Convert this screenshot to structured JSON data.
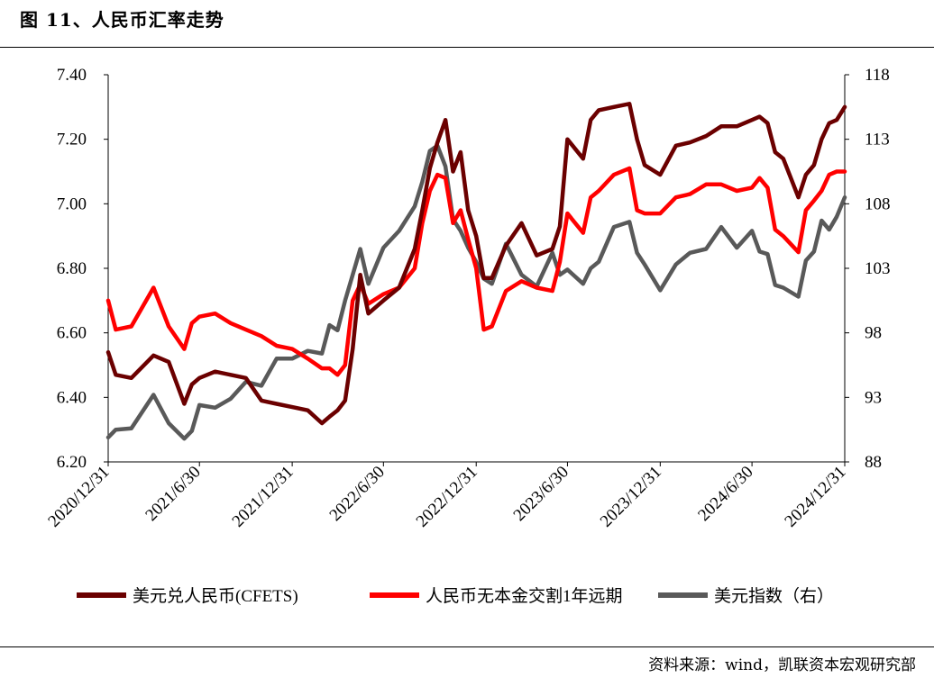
{
  "figure_title": "图 11、人民币汇率走势",
  "source_note": "资料来源：wind，凯联资本宏观研究部",
  "colors": {
    "usdcny": "#6b0000",
    "ndf": "#ff0000",
    "dxy": "#595959"
  },
  "chart_data": {
    "type": "line",
    "title": "",
    "x_ticks": [
      "2020/12/31",
      "2021/6/30",
      "2021/12/31",
      "2022/6/30",
      "2022/12/31",
      "2023/6/30",
      "2023/12/31",
      "2024/6/30",
      "2024/12/31"
    ],
    "x_range": [
      "2020/12/31",
      "2024/12/31"
    ],
    "y_left": {
      "min": 6.2,
      "max": 7.4,
      "ticks": [
        "6.20",
        "6.40",
        "6.60",
        "6.80",
        "7.00",
        "7.20",
        "7.40"
      ]
    },
    "y_right": {
      "min": 88,
      "max": 118,
      "ticks": [
        "88",
        "93",
        "98",
        "103",
        "108",
        "113",
        "118"
      ]
    },
    "legend_position": "bottom",
    "series": [
      {
        "name": "美元兑人民币(CFETS)",
        "axis": "left",
        "color": "#6b0000",
        "x": [
          "2020/12/31",
          "2021/1/15",
          "2021/2/15",
          "2021/3/31",
          "2021/4/30",
          "2021/5/31",
          "2021/6/15",
          "2021/6/30",
          "2021/7/31",
          "2021/8/31",
          "2021/9/30",
          "2021/10/31",
          "2021/11/30",
          "2021/12/31",
          "2022/1/31",
          "2022/2/28",
          "2022/3/15",
          "2022/3/31",
          "2022/4/15",
          "2022/4/30",
          "2022/5/15",
          "2022/5/31",
          "2022/6/30",
          "2022/7/31",
          "2022/8/31",
          "2022/9/15",
          "2022/9/30",
          "2022/10/15",
          "2022/10/31",
          "2022/11/15",
          "2022/11/30",
          "2022/12/15",
          "2022/12/31",
          "2023/1/15",
          "2023/1/31",
          "2023/2/28",
          "2023/3/31",
          "2023/4/30",
          "2023/5/31",
          "2023/6/15",
          "2023/6/30",
          "2023/7/31",
          "2023/8/15",
          "2023/8/31",
          "2023/9/30",
          "2023/10/31",
          "2023/11/15",
          "2023/11/30",
          "2023/12/31",
          "2024/1/31",
          "2024/2/28",
          "2024/3/31",
          "2024/4/30",
          "2024/5/31",
          "2024/6/30",
          "2024/7/15",
          "2024/7/31",
          "2024/8/15",
          "2024/8/31",
          "2024/9/30",
          "2024/10/15",
          "2024/10/31",
          "2024/11/15",
          "2024/11/30",
          "2024/12/15",
          "2024/12/31"
        ],
        "y": [
          6.54,
          6.47,
          6.46,
          6.53,
          6.51,
          6.38,
          6.44,
          6.46,
          6.48,
          6.47,
          6.46,
          6.39,
          6.38,
          6.37,
          6.36,
          6.32,
          6.34,
          6.36,
          6.39,
          6.55,
          6.78,
          6.66,
          6.7,
          6.74,
          6.86,
          6.98,
          7.11,
          7.19,
          7.26,
          7.1,
          7.16,
          6.98,
          6.9,
          6.77,
          6.77,
          6.87,
          6.94,
          6.84,
          6.86,
          6.93,
          7.2,
          7.14,
          7.26,
          7.29,
          7.3,
          7.31,
          7.2,
          7.12,
          7.09,
          7.18,
          7.19,
          7.21,
          7.24,
          7.24,
          7.26,
          7.27,
          7.25,
          7.16,
          7.14,
          7.02,
          7.09,
          7.12,
          7.2,
          7.25,
          7.26,
          7.3
        ]
      },
      {
        "name": "人民币无本金交割1年远期",
        "axis": "left",
        "color": "#ff0000",
        "x": [
          "2020/12/31",
          "2021/1/15",
          "2021/2/15",
          "2021/3/31",
          "2021/4/30",
          "2021/5/31",
          "2021/6/15",
          "2021/6/30",
          "2021/7/31",
          "2021/8/31",
          "2021/9/30",
          "2021/10/31",
          "2021/11/30",
          "2021/12/31",
          "2022/1/31",
          "2022/2/28",
          "2022/3/15",
          "2022/3/31",
          "2022/4/15",
          "2022/4/30",
          "2022/5/15",
          "2022/5/31",
          "2022/6/30",
          "2022/7/31",
          "2022/8/31",
          "2022/9/15",
          "2022/9/30",
          "2022/10/15",
          "2022/10/31",
          "2022/11/15",
          "2022/11/30",
          "2022/12/15",
          "2022/12/31",
          "2023/1/15",
          "2023/1/31",
          "2023/2/28",
          "2023/3/31",
          "2023/4/30",
          "2023/5/31",
          "2023/6/15",
          "2023/6/30",
          "2023/7/31",
          "2023/8/15",
          "2023/8/31",
          "2023/9/30",
          "2023/10/31",
          "2023/11/15",
          "2023/11/30",
          "2023/12/31",
          "2024/1/31",
          "2024/2/28",
          "2024/3/31",
          "2024/4/30",
          "2024/5/31",
          "2024/6/30",
          "2024/7/15",
          "2024/7/31",
          "2024/8/15",
          "2024/8/31",
          "2024/9/30",
          "2024/10/15",
          "2024/10/31",
          "2024/11/15",
          "2024/11/30",
          "2024/12/15",
          "2024/12/31"
        ],
        "y": [
          6.7,
          6.61,
          6.62,
          6.74,
          6.62,
          6.55,
          6.63,
          6.65,
          6.66,
          6.63,
          6.61,
          6.59,
          6.56,
          6.55,
          6.52,
          6.49,
          6.49,
          6.47,
          6.5,
          6.7,
          6.75,
          6.69,
          6.72,
          6.74,
          6.8,
          6.94,
          7.04,
          7.09,
          7.08,
          6.94,
          6.98,
          6.89,
          6.8,
          6.61,
          6.62,
          6.73,
          6.76,
          6.74,
          6.73,
          6.82,
          6.97,
          6.91,
          7.02,
          7.04,
          7.09,
          7.11,
          6.98,
          6.97,
          6.97,
          7.02,
          7.03,
          7.06,
          7.06,
          7.04,
          7.05,
          7.08,
          7.05,
          6.92,
          6.9,
          6.85,
          6.98,
          7.01,
          7.04,
          7.09,
          7.1,
          7.1
        ]
      },
      {
        "name": "美元指数（右）",
        "axis": "right",
        "color": "#595959",
        "x": [
          "2020/12/31",
          "2021/1/15",
          "2021/2/15",
          "2021/3/31",
          "2021/4/30",
          "2021/5/31",
          "2021/6/15",
          "2021/6/30",
          "2021/7/31",
          "2021/8/31",
          "2021/9/30",
          "2021/10/31",
          "2021/11/30",
          "2021/12/31",
          "2022/1/31",
          "2022/2/28",
          "2022/3/15",
          "2022/3/31",
          "2022/4/15",
          "2022/4/30",
          "2022/5/15",
          "2022/5/31",
          "2022/6/30",
          "2022/7/31",
          "2022/8/31",
          "2022/9/15",
          "2022/9/30",
          "2022/10/15",
          "2022/10/31",
          "2022/11/15",
          "2022/11/30",
          "2022/12/15",
          "2022/12/31",
          "2023/1/15",
          "2023/1/31",
          "2023/2/28",
          "2023/3/31",
          "2023/4/30",
          "2023/5/31",
          "2023/6/15",
          "2023/6/30",
          "2023/7/31",
          "2023/8/15",
          "2023/8/31",
          "2023/9/30",
          "2023/10/31",
          "2023/11/15",
          "2023/11/30",
          "2023/12/31",
          "2024/1/31",
          "2024/2/28",
          "2024/3/31",
          "2024/4/30",
          "2024/5/31",
          "2024/6/30",
          "2024/7/15",
          "2024/7/31",
          "2024/8/15",
          "2024/8/31",
          "2024/9/30",
          "2024/10/15",
          "2024/10/31",
          "2024/11/15",
          "2024/11/30",
          "2024/12/15",
          "2024/12/31"
        ],
        "y": [
          89.9,
          90.5,
          90.6,
          93.2,
          91.0,
          89.8,
          90.4,
          92.4,
          92.2,
          92.9,
          94.2,
          93.9,
          96.0,
          96.0,
          96.6,
          96.4,
          98.6,
          98.2,
          100.5,
          102.5,
          104.5,
          101.8,
          104.6,
          105.9,
          107.8,
          109.7,
          112.1,
          112.5,
          110.9,
          106.8,
          105.9,
          104.6,
          103.5,
          102.2,
          101.8,
          104.9,
          102.5,
          101.6,
          104.2,
          102.5,
          102.9,
          101.8,
          103.0,
          103.5,
          106.2,
          106.6,
          104.2,
          103.3,
          101.3,
          103.3,
          104.2,
          104.5,
          106.2,
          104.6,
          105.9,
          104.3,
          104.1,
          101.7,
          101.5,
          100.8,
          103.6,
          104.3,
          106.7,
          106.0,
          107.0,
          108.5
        ]
      }
    ]
  }
}
